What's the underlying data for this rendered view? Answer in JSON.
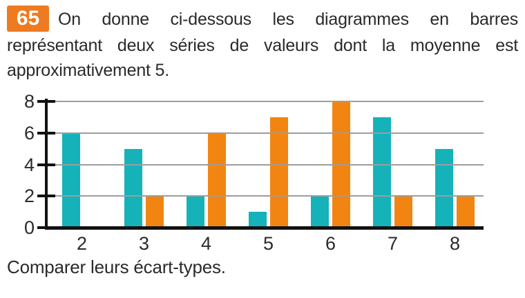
{
  "exercise": {
    "number": "65",
    "statement_lines": [
      "On donne ci-dessous les diagrammes en barres",
      "représentant deux séries de valeurs dont la moyenne est",
      "approximativement 5."
    ],
    "question": "Comparer leurs écart-types."
  },
  "colors": {
    "exercise_badge": "#ee7b21",
    "series1": "#16b2ba",
    "series2": "#f28511",
    "gridline": "#9d9d9d",
    "axis": "#111111",
    "text": "#2a2a2a"
  },
  "chart_data": {
    "type": "bar",
    "title": "",
    "xlabel": "",
    "ylabel": "",
    "categories": [
      "2",
      "3",
      "4",
      "5",
      "6",
      "7",
      "8"
    ],
    "series": [
      {
        "name": "série turquoise",
        "color": "#16b2ba",
        "values": [
          6,
          5,
          2,
          1,
          2,
          7,
          5
        ]
      },
      {
        "name": "série orange",
        "color": "#f28511",
        "values": [
          0,
          2,
          6,
          7,
          8,
          2,
          2
        ]
      }
    ],
    "ylim": [
      0,
      8
    ],
    "yticks": [
      0,
      2,
      4,
      6,
      8
    ],
    "grid": true,
    "legend": false
  }
}
